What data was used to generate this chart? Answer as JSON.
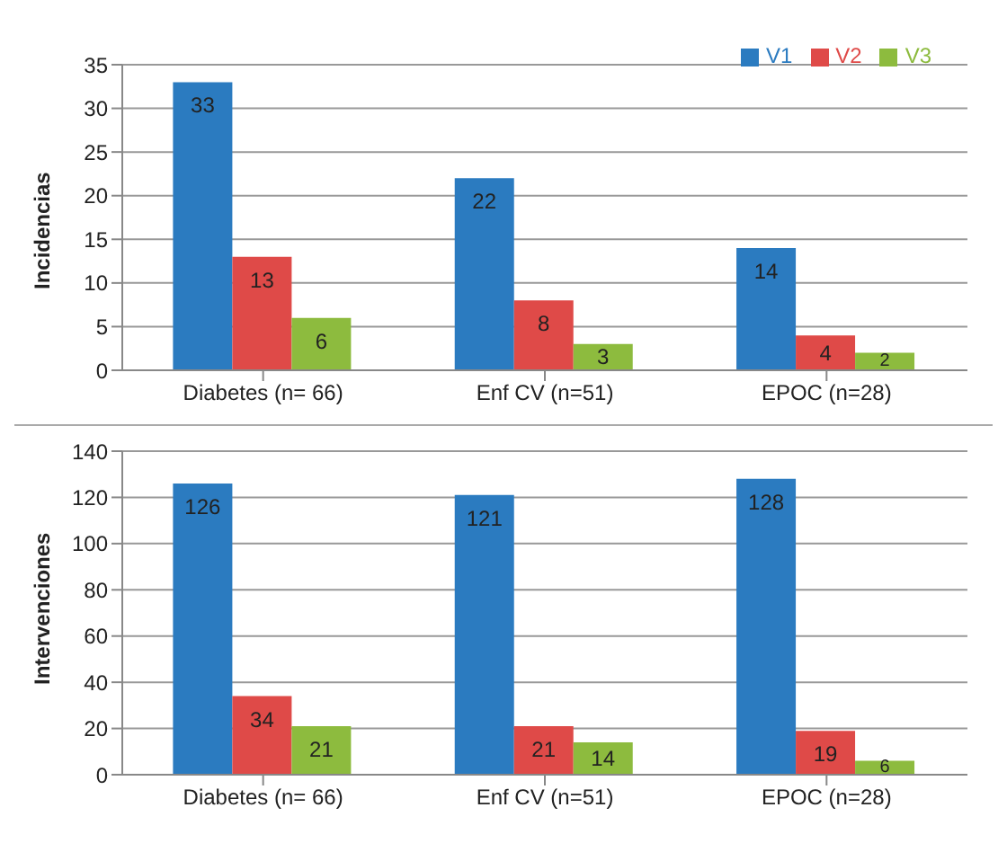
{
  "chart_data": [
    {
      "type": "bar",
      "ylabel": "Incidencias",
      "categories": [
        "Diabetes (n= 66)",
        "Enf CV (n=51)",
        "EPOC (n=28)"
      ],
      "series": [
        {
          "name": "V1",
          "color": "#2b7bc0",
          "values": [
            33,
            22,
            14
          ]
        },
        {
          "name": "V2",
          "color": "#df4a48",
          "values": [
            13,
            8,
            4
          ]
        },
        {
          "name": "V3",
          "color": "#8dbb3e",
          "values": [
            6,
            3,
            2
          ]
        }
      ],
      "ylim": [
        0,
        35
      ],
      "yticks": [
        0,
        5,
        10,
        15,
        20,
        25,
        30,
        35
      ],
      "grid": "y",
      "legend": "top right",
      "data_labels": true
    },
    {
      "type": "bar",
      "ylabel": "Intervenciones",
      "categories": [
        "Diabetes (n= 66)",
        "Enf CV (n=51)",
        "EPOC (n=28)"
      ],
      "series": [
        {
          "color": "#2b7bc0",
          "values": [
            126,
            121,
            128
          ]
        },
        {
          "color": "#df4a48",
          "values": [
            34,
            21,
            19
          ]
        },
        {
          "color": "#8dbb3e",
          "values": [
            21,
            14,
            6
          ]
        }
      ],
      "ylim": [
        0,
        140
      ],
      "yticks": [
        0,
        20,
        40,
        60,
        80,
        100,
        120,
        140
      ],
      "grid": "y",
      "data_labels": true
    }
  ]
}
